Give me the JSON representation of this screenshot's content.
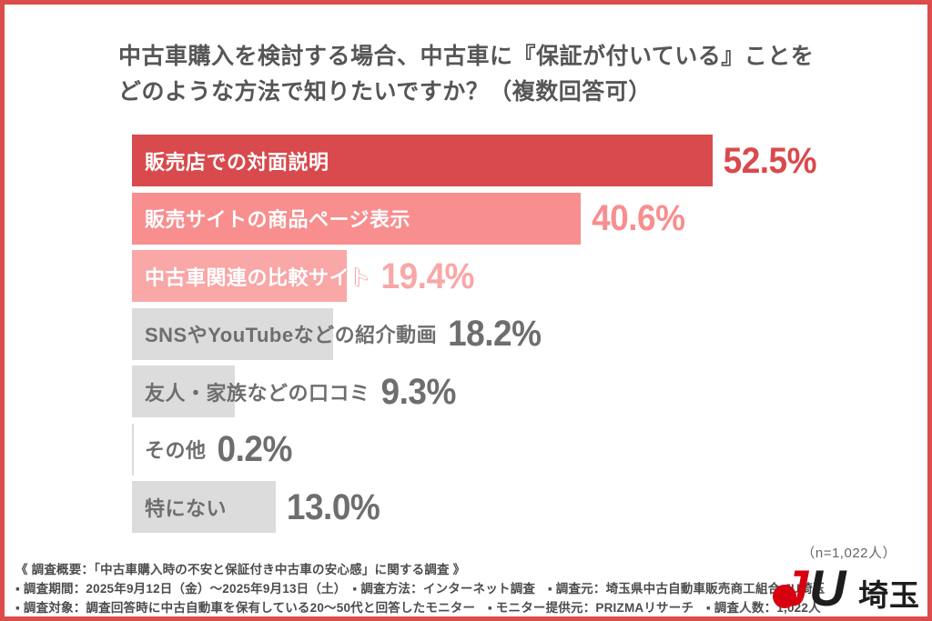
{
  "page": {
    "border_color": "#dc4c4c",
    "title_line1": "中古車購入を検討する場合、中古車に『保証が付いている』ことを",
    "title_line2": "どのような方法で知りたいですか？（複数回答可）",
    "sample_note": "（n=1,022人）"
  },
  "chart_data": {
    "type": "bar",
    "orientation": "horizontal",
    "title": "中古車購入を検討する場合、中古車に『保証が付いている』ことをどのような方法で知りたいですか？（複数回答可）",
    "n": "1,022",
    "categories": [
      "販売店での対面説明",
      "販売サイトの商品ページ表示",
      "中古車関連の比較サイト",
      "SNSやYouTubeなどの紹介動画",
      "友人・家族などの口コミ",
      "その他",
      "特にない"
    ],
    "values": [
      52.5,
      40.6,
      19.4,
      18.2,
      9.3,
      0.2,
      13.0
    ],
    "display_values": [
      "52.5%",
      "40.6%",
      "19.4%",
      "18.2%",
      "9.3%",
      "0.2%",
      "13.0%"
    ],
    "bar_colors": [
      "#d84a4d",
      "#f88e8e",
      "#f9a7a7",
      "#dcdcdc",
      "#dcdcdc",
      "#dcdcdc",
      "#dcdcdc"
    ],
    "label_colors": [
      "#ffffff",
      "#ffffff",
      "#ffffff",
      "#6e6e6e",
      "#6e6e6e",
      "#6e6e6e",
      "#6e6e6e"
    ],
    "value_colors": [
      "#d84a4d",
      "#f88e8e",
      "#f9a7a7",
      "#6e6e6e",
      "#6e6e6e",
      "#6e6e6e",
      "#6e6e6e"
    ],
    "label_outline": [
      false,
      false,
      true,
      false,
      false,
      false,
      false
    ],
    "xlim": [
      0,
      55
    ],
    "grid": false,
    "legend": "none"
  },
  "footer": {
    "lines": [
      "《 調査概要：「中古車購入時の不安と保証付き中古車の安心感」に関する調査 》",
      "▪ 調査期間：2025年9月12日（金）～2025年9月13日（土）　▪ 調査方法：インターネット調査　▪ 調査元：埼玉県中古自動車販売商工組合 JU埼玉",
      "▪ 調査対象：調査回答時に中古自動車を保有している20～50代と回答したモニター　▪ モニター提供元：PRIZMAリサーチ　▪ 調査人数：1,022人"
    ]
  },
  "logo": {
    "j": "J",
    "u": "U",
    "text": "埼玉",
    "red": "#d7000f",
    "black": "#1d1d1d"
  }
}
